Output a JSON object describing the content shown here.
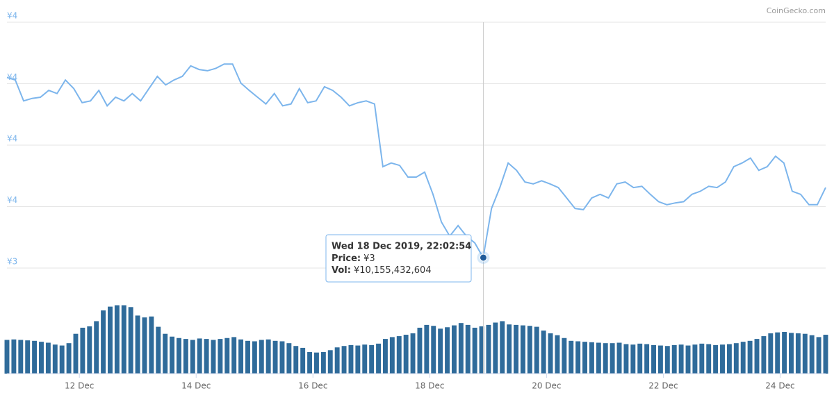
{
  "brand": "CoinGecko.com",
  "chart_data": {
    "type": "line",
    "price_color": "#7cb5ec",
    "volume_color": "#2f6b9a",
    "grid": true,
    "xlim": [
      10.76,
      24.78
    ],
    "xticks": [
      {
        "value": 12,
        "label": "12 Dec"
      },
      {
        "value": 14,
        "label": "14 Dec"
      },
      {
        "value": 16,
        "label": "16 Dec"
      },
      {
        "value": 18,
        "label": "18 Dec"
      },
      {
        "value": 20,
        "label": "20 Dec"
      },
      {
        "value": 22,
        "label": "22 Dec"
      },
      {
        "value": 24,
        "label": "24 Dec"
      }
    ],
    "ylim": [
      3.4,
      3.8
    ],
    "yticks": [
      {
        "value": 3.8,
        "label": "¥4"
      },
      {
        "value": 3.7,
        "label": "¥4"
      },
      {
        "value": 3.6,
        "label": "¥4"
      },
      {
        "value": 3.5,
        "label": "¥4"
      },
      {
        "value": 3.4,
        "label": "¥3"
      }
    ],
    "volume_ylim": [
      0,
      17500000000.0
    ],
    "price_values": [
      3.71,
      3.706,
      3.672,
      3.676,
      3.678,
      3.689,
      3.684,
      3.706,
      3.692,
      3.669,
      3.672,
      3.689,
      3.664,
      3.678,
      3.672,
      3.684,
      3.672,
      3.692,
      3.712,
      3.698,
      3.706,
      3.712,
      3.729,
      3.723,
      3.721,
      3.725,
      3.732,
      3.732,
      3.701,
      3.689,
      3.678,
      3.667,
      3.684,
      3.664,
      3.667,
      3.692,
      3.669,
      3.672,
      3.695,
      3.689,
      3.678,
      3.664,
      3.669,
      3.672,
      3.667,
      3.565,
      3.571,
      3.567,
      3.548,
      3.548,
      3.556,
      3.52,
      3.475,
      3.452,
      3.469,
      3.452,
      3.441,
      3.417,
      3.497,
      3.531,
      3.571,
      3.559,
      3.54,
      3.537,
      3.542,
      3.537,
      3.531,
      3.514,
      3.497,
      3.495,
      3.514,
      3.52,
      3.514,
      3.537,
      3.54,
      3.531,
      3.533,
      3.52,
      3.508,
      3.503,
      3.506,
      3.508,
      3.52,
      3.525,
      3.533,
      3.531,
      3.54,
      3.565,
      3.571,
      3.579,
      3.559,
      3.565,
      3.582,
      3.571,
      3.525,
      3.52,
      3.503,
      3.503,
      3.531
    ],
    "volume_values": [
      7200000000.0,
      7300000000.0,
      7200000000.0,
      7100000000.0,
      7000000000.0,
      6800000000.0,
      6600000000.0,
      6200000000.0,
      6000000000.0,
      6500000000.0,
      8500000000.0,
      9800000000.0,
      10100000000.0,
      11200000000.0,
      13500000000.0,
      14300000000.0,
      14600000000.0,
      14600000000.0,
      14200000000.0,
      12400000000.0,
      12000000000.0,
      12200000000.0,
      10000000000.0,
      8500000000.0,
      7900000000.0,
      7600000000.0,
      7400000000.0,
      7200000000.0,
      7500000000.0,
      7400000000.0,
      7200000000.0,
      7400000000.0,
      7600000000.0,
      7800000000.0,
      7300000000.0,
      7000000000.0,
      6900000000.0,
      7200000000.0,
      7300000000.0,
      7000000000.0,
      6900000000.0,
      6500000000.0,
      5900000000.0,
      5500000000.0,
      4600000000.0,
      4500000000.0,
      4600000000.0,
      5000000000.0,
      5600000000.0,
      5900000000.0,
      6100000000.0,
      6000000000.0,
      6200000000.0,
      6100000000.0,
      6400000000.0,
      7400000000.0,
      7800000000.0,
      8000000000.0,
      8300000000.0,
      8600000000.0,
      9800000000.0,
      10400000000.0,
      10200000000.0,
      9600000000.0,
      9900000000.0,
      10300000000.0,
      10800000000.0,
      10400000000.0,
      9800000000.0,
      10100000000.0,
      10400000000.0,
      10900000000.0,
      11200000000.0,
      10500000000.0,
      10400000000.0,
      10300000000.0,
      10200000000.0,
      10000000000.0,
      9200000000.0,
      8600000000.0,
      8200000000.0,
      7600000000.0,
      7000000000.0,
      6900000000.0,
      6800000000.0,
      6700000000.0,
      6600000000.0,
      6500000000.0,
      6500000000.0,
      6600000000.0,
      6300000000.0,
      6200000000.0,
      6400000000.0,
      6300000000.0,
      6100000000.0,
      6000000000.0,
      5900000000.0,
      6100000000.0,
      6200000000.0,
      6000000000.0,
      6200000000.0,
      6400000000.0,
      6300000000.0,
      6100000000.0,
      6200000000.0,
      6300000000.0,
      6500000000.0,
      6800000000.0,
      7000000000.0,
      7400000000.0,
      8000000000.0,
      8600000000.0,
      8800000000.0,
      8900000000.0,
      8700000000.0,
      8600000000.0,
      8500000000.0,
      8200000000.0,
      7800000000.0,
      8300000000.0
    ],
    "tooltip": {
      "x": 18.918,
      "date": "Wed 18 Dec 2019, 22:02:54",
      "price_label": "Price:",
      "price": 3.417,
      "price_value_label": "¥3",
      "vol_label": "Vol:",
      "vol": 10155432604,
      "vol_value_label": "¥10,155,432,604"
    }
  }
}
